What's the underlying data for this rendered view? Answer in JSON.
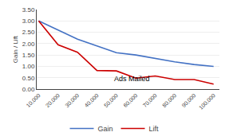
{
  "chart_data": {
    "type": "line",
    "ylabel": "Gain / Lift",
    "x": [
      10000,
      20000,
      30000,
      40000,
      50000,
      60000,
      70000,
      80000,
      90000,
      100000
    ],
    "series": [
      {
        "name": "Gain",
        "color": "#4472C4",
        "values": [
          3.0,
          2.6,
          2.2,
          1.9,
          1.6,
          1.5,
          1.35,
          1.2,
          1.08,
          1.0
        ]
      },
      {
        "name": "Lift",
        "color": "#CC0000",
        "values": [
          3.0,
          1.95,
          1.62,
          0.82,
          0.8,
          0.48,
          0.58,
          0.42,
          0.42,
          0.22
        ]
      }
    ],
    "annotations": [
      {
        "text": "Ads Mailed",
        "x": 48000,
        "y": 0.22
      }
    ],
    "xlim": [
      9000,
      103000
    ],
    "xticks": [
      {
        "value": 10000,
        "label": "10,000"
      },
      {
        "value": 20000,
        "label": "20,000"
      },
      {
        "value": 30000,
        "label": "30,000"
      },
      {
        "value": 40000,
        "label": "40,000"
      },
      {
        "value": 50000,
        "label": "50,000"
      },
      {
        "value": 60000,
        "label": "60,000"
      },
      {
        "value": 70000,
        "label": "70,000"
      },
      {
        "value": 80000,
        "label": "80,000"
      },
      {
        "value": 90000,
        "label": "90,000"
      },
      {
        "value": 100000,
        "label": "100,000"
      }
    ],
    "ylim": [
      0.0,
      3.5
    ],
    "yticks": [
      {
        "value": 0.0,
        "label": "0.00"
      },
      {
        "value": 0.5,
        "label": "0.50"
      },
      {
        "value": 1.0,
        "label": "1.00"
      },
      {
        "value": 1.5,
        "label": "1.50"
      },
      {
        "value": 2.0,
        "label": "2.00"
      },
      {
        "value": 2.5,
        "label": "2.50"
      },
      {
        "value": 3.0,
        "label": "3.00"
      },
      {
        "value": 3.5,
        "label": "3.50"
      }
    ],
    "grid": true,
    "legend": "bottom"
  }
}
